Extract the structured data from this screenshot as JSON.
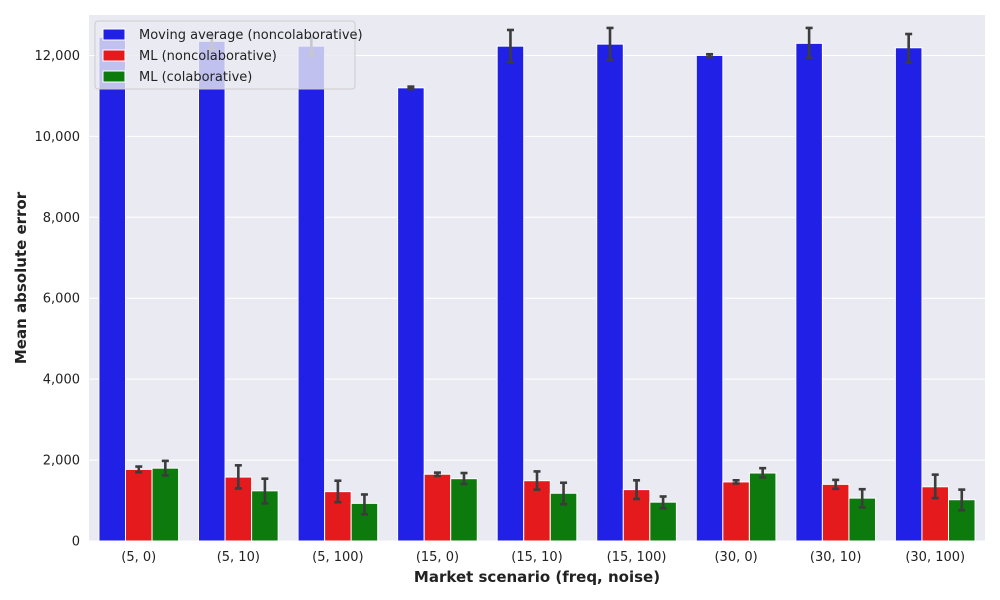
{
  "chart_data": {
    "type": "bar",
    "title": "",
    "xlabel": "Market scenario (freq, noise)",
    "ylabel": "Mean absolute error",
    "ylim": [
      0,
      13000
    ],
    "yticks": [
      0,
      2000,
      4000,
      6000,
      8000,
      10000,
      12000
    ],
    "ytick_labels": [
      "0",
      "2,000",
      "4,000",
      "6,000",
      "8,000",
      "10,000",
      "12,000"
    ],
    "grid": "horizontal",
    "legend_position": "top-left",
    "categories": [
      "(5, 0)",
      "(5, 10)",
      "(5, 100)",
      "(15, 0)",
      "(15, 10)",
      "(15, 100)",
      "(30, 0)",
      "(30, 10)",
      "(30, 100)"
    ],
    "series": [
      {
        "name": "Moving average (noncolaborative)",
        "color": "#2020e6",
        "values": [
          12450,
          12350,
          12230,
          11200,
          12230,
          12280,
          12000,
          12300,
          12190
        ],
        "error": [
          [
            12420,
            12560
          ],
          [
            12150,
            12490
          ],
          [
            12000,
            12440
          ],
          [
            11170,
            11230
          ],
          [
            11830,
            12630
          ],
          [
            11890,
            12680
          ],
          [
            11960,
            12030
          ],
          [
            11940,
            12680
          ],
          [
            11820,
            12530
          ]
        ]
      },
      {
        "name": "ML (noncolaborative)",
        "color": "#e41a1c",
        "values": [
          1770,
          1580,
          1220,
          1650,
          1490,
          1270,
          1460,
          1400,
          1340
        ],
        "error": [
          [
            1700,
            1840
          ],
          [
            1300,
            1870
          ],
          [
            960,
            1490
          ],
          [
            1610,
            1690
          ],
          [
            1270,
            1720
          ],
          [
            1040,
            1500
          ],
          [
            1420,
            1500
          ],
          [
            1290,
            1510
          ],
          [
            1060,
            1640
          ]
        ]
      },
      {
        "name": "ML (colaborative)",
        "color": "#0c7a0c",
        "values": [
          1800,
          1240,
          930,
          1540,
          1180,
          960,
          1680,
          1060,
          1020
        ],
        "error": [
          [
            1620,
            1980
          ],
          [
            930,
            1540
          ],
          [
            660,
            1150
          ],
          [
            1410,
            1680
          ],
          [
            910,
            1440
          ],
          [
            810,
            1100
          ],
          [
            1570,
            1800
          ],
          [
            830,
            1280
          ],
          [
            760,
            1270
          ]
        ]
      }
    ]
  }
}
